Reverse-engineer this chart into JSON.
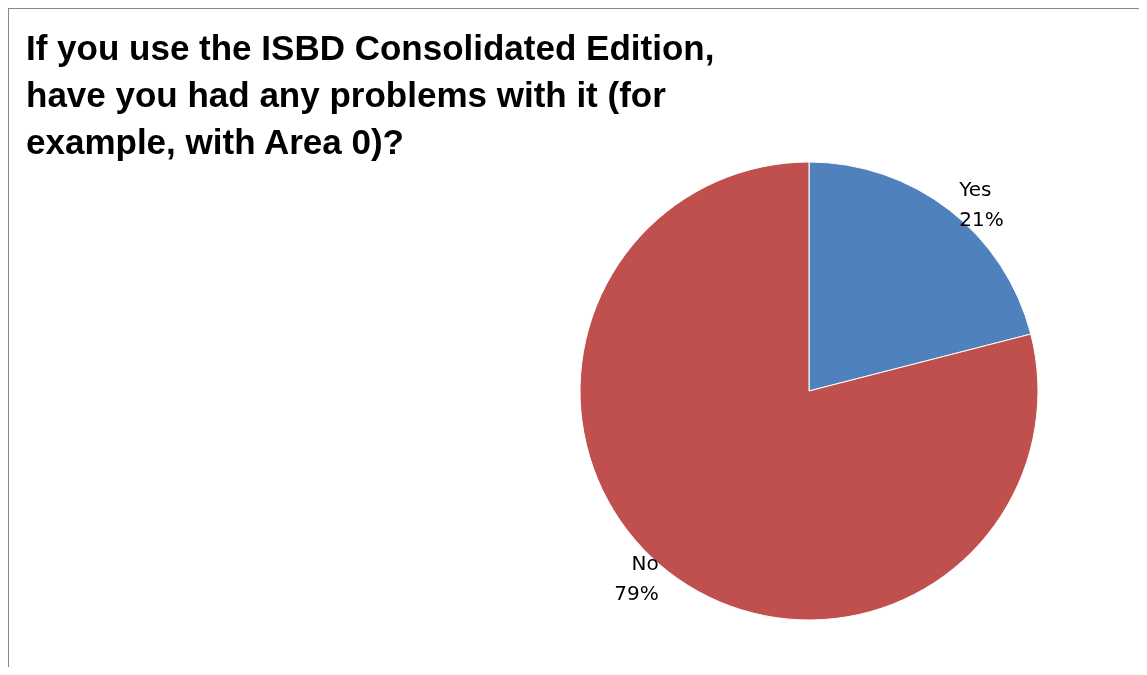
{
  "chart_data": {
    "type": "pie",
    "title": "If you use the ISBD Consolidated Edition, have you had any problems with it (for example, with Area 0)?",
    "categories": [
      "Yes",
      "No"
    ],
    "values": [
      21,
      79
    ],
    "colors": [
      "#4f81bd",
      "#c0504d"
    ],
    "value_labels": [
      "21%",
      "79%"
    ],
    "legend": false
  }
}
